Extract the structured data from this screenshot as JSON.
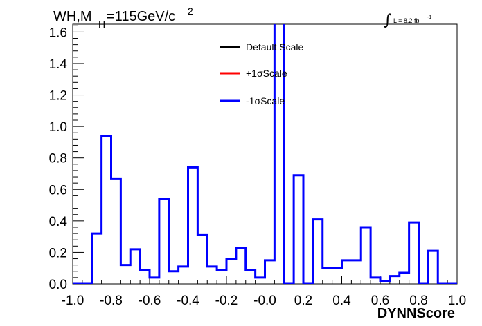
{
  "chart_data": {
    "type": "line",
    "title": {
      "main": "WH,M",
      "sub": "H",
      "value": "=115GeV/c",
      "sup": "2"
    },
    "annotation": {
      "integral": "∫",
      "text": "L = 8.2 fb",
      "sup": "-1"
    },
    "xlabel": "DYNNScore",
    "ylabel": "",
    "xlim": [
      -1.0,
      1.0
    ],
    "ylim": [
      0.0,
      1.65
    ],
    "xticks": [
      "-1.0",
      "-0.8",
      "-0.6",
      "-0.4",
      "-0.2",
      "-0.0",
      "0.2",
      "0.4",
      "0.6",
      "0.8",
      "1.0"
    ],
    "yticks": [
      "0.0",
      "0.2",
      "0.4",
      "0.6",
      "0.8",
      "1.0",
      "1.2",
      "1.4",
      "1.6"
    ],
    "legend_position": "top-center",
    "series": [
      {
        "name": "Default Scale",
        "color": "#000000"
      },
      {
        "name": "+1σScale",
        "color": "#ff0000"
      },
      {
        "name": "-1σScale",
        "color": "#0000ff"
      }
    ],
    "histogram": {
      "bin_edges": [
        -1.0,
        -0.95,
        -0.9,
        -0.85,
        -0.8,
        -0.75,
        -0.7,
        -0.65,
        -0.6,
        -0.55,
        -0.5,
        -0.45,
        -0.4,
        -0.35,
        -0.3,
        -0.25,
        -0.2,
        -0.15,
        -0.1,
        -0.05,
        0.0,
        0.05,
        0.1,
        0.15,
        0.2,
        0.25,
        0.3,
        0.35,
        0.4,
        0.45,
        0.5,
        0.55,
        0.6,
        0.65,
        0.7,
        0.75,
        0.8,
        0.85,
        0.9,
        0.95,
        1.0
      ],
      "values": [
        0.0,
        0.0,
        0.32,
        0.94,
        0.67,
        0.12,
        0.22,
        0.09,
        0.04,
        0.54,
        0.08,
        0.11,
        0.74,
        0.31,
        0.11,
        0.09,
        0.16,
        0.23,
        0.09,
        0.04,
        0.15,
        1.7,
        0.0,
        0.69,
        0.0,
        0.41,
        0.1,
        0.1,
        0.15,
        0.15,
        0.36,
        0.04,
        0.02,
        0.05,
        0.07,
        0.39,
        0.0,
        0.21,
        0.0,
        0.0
      ],
      "overflow_bin_index": 21
    }
  }
}
